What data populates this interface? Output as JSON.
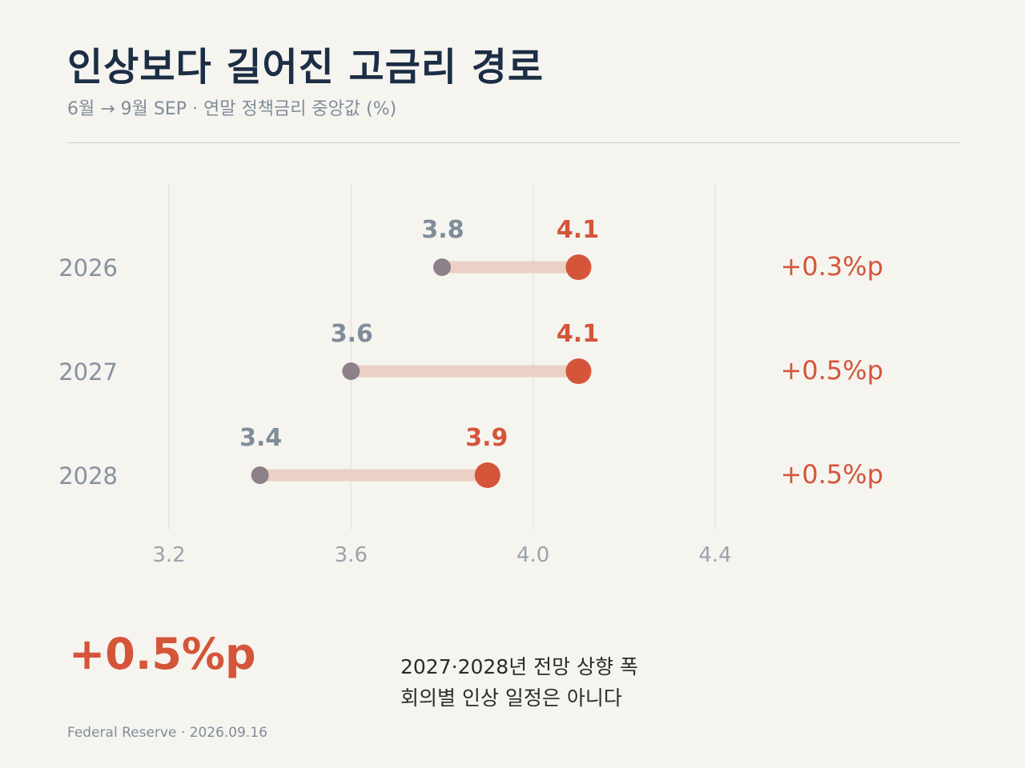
{
  "header": {
    "title": "인상보다 길어진 고금리 경로",
    "subtitle": "6월 → 9월 SEP · 연말 정책금리 중앙값 (%)"
  },
  "colors": {
    "background": "#f6f4ef",
    "old_point": "#8d8088",
    "old_label": "#7f8c99",
    "new_point": "#d4553a",
    "connector": "#ecd0c5",
    "title": "#1c2e45"
  },
  "chart_data": {
    "type": "dumbbell",
    "categories": [
      "2026",
      "2027",
      "2028"
    ],
    "series": [
      {
        "name": "6월",
        "values": [
          3.8,
          3.6,
          3.4
        ]
      },
      {
        "name": "9월",
        "values": [
          4.1,
          4.1,
          3.9
        ]
      }
    ],
    "value_labels": {
      "old": [
        "3.8",
        "3.6",
        "3.4"
      ],
      "new": [
        "4.1",
        "4.1",
        "3.9"
      ]
    },
    "changes": [
      "+0.3%p",
      "+0.5%p",
      "+0.5%p"
    ],
    "x_ticks": [
      "3.2",
      "3.6",
      "4.0",
      "4.4"
    ],
    "x_tick_values": [
      3.2,
      3.6,
      4.0,
      4.4
    ],
    "xlim": [
      3.2,
      4.4
    ],
    "grid": true,
    "legend": "none"
  },
  "summary": {
    "value": "+0.5%p",
    "line1": "2027·2028년 전망 상향 폭",
    "line2": "회의별 인상 일정은 아니다"
  },
  "footer": {
    "source": "Federal Reserve · 2026.09.16"
  }
}
